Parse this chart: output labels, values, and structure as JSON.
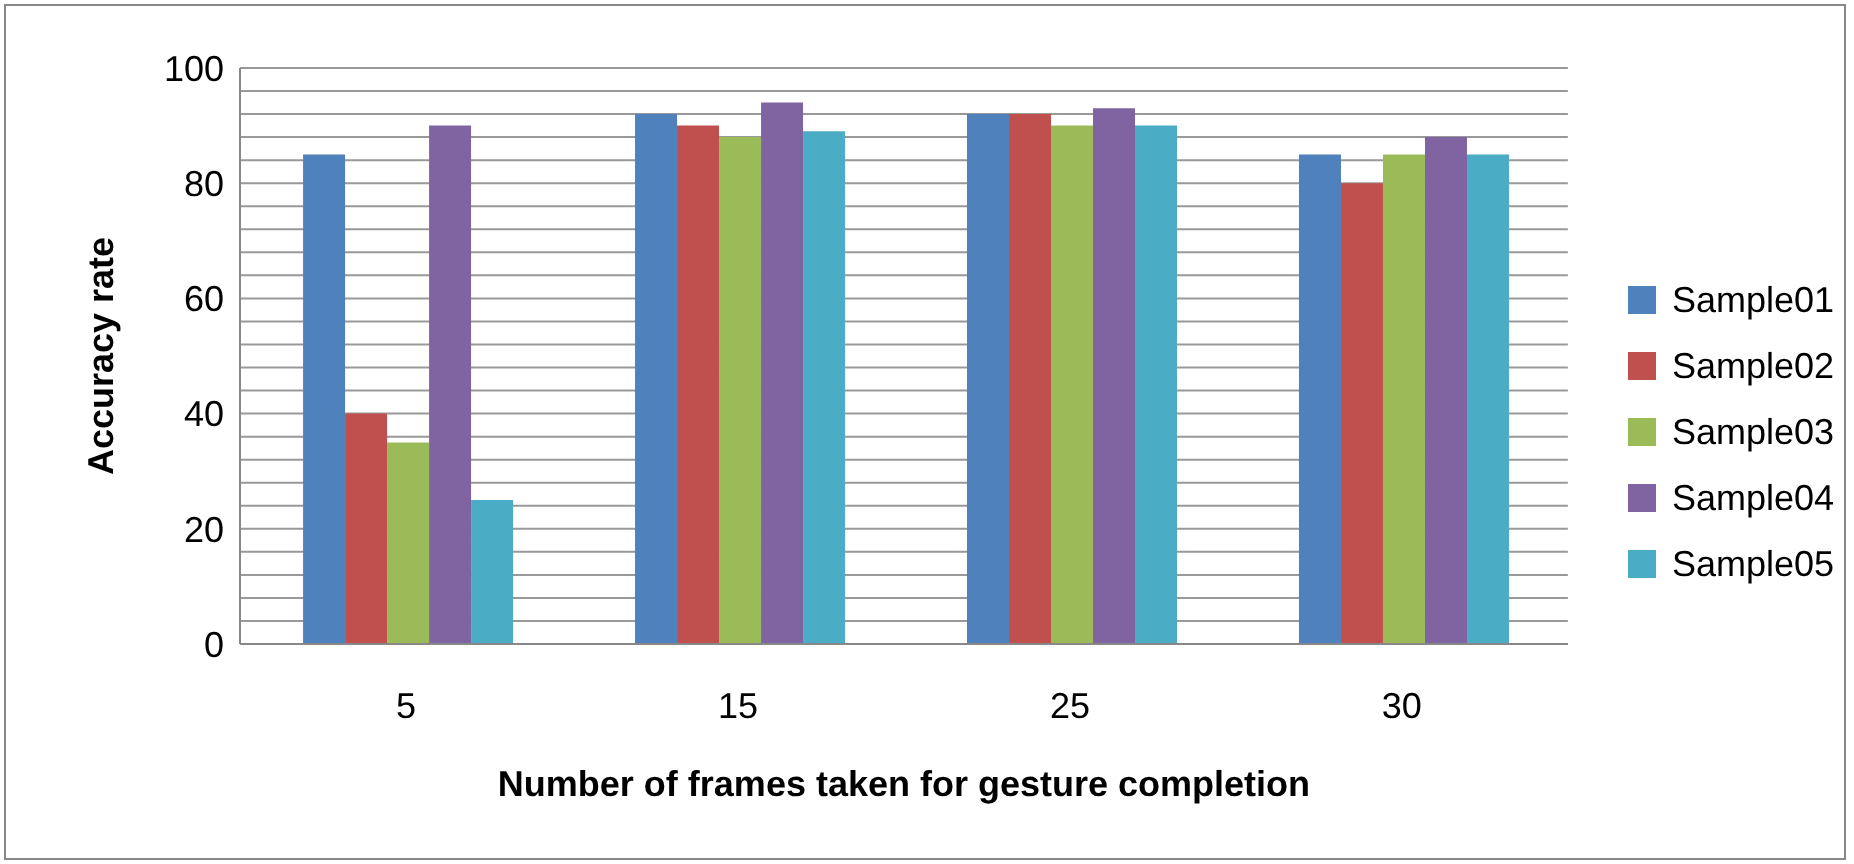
{
  "chart_data": {
    "type": "bar",
    "xlabel": "Number of frames taken for gesture completion",
    "ylabel": "Accuracy rate",
    "categories": [
      "5",
      "15",
      "25",
      "30"
    ],
    "series": [
      {
        "name": "Sample01",
        "color": "#4f81bd",
        "values": [
          85,
          92,
          92,
          85
        ]
      },
      {
        "name": "Sample02",
        "color": "#c0504d",
        "values": [
          40,
          90,
          92,
          80
        ]
      },
      {
        "name": "Sample03",
        "color": "#9bbb59",
        "values": [
          35,
          88,
          90,
          85
        ]
      },
      {
        "name": "Sample04",
        "color": "#8064a2",
        "values": [
          90,
          94,
          93,
          88
        ]
      },
      {
        "name": "Sample05",
        "color": "#4bacc6",
        "values": [
          25,
          89,
          90,
          85
        ]
      }
    ],
    "ylim": [
      0,
      100
    ],
    "yticks": [
      0,
      {
        "value": 4,
        "label": null
      },
      {
        "value": 8,
        "label": null
      },
      {
        "value": 12,
        "label": null
      },
      {
        "value": 16,
        "label": null
      },
      20,
      {
        "value": 24,
        "label": null
      },
      {
        "value": 28,
        "label": null
      },
      {
        "value": 32,
        "label": null
      },
      {
        "value": 36,
        "label": null
      },
      40,
      {
        "value": 44,
        "label": null
      },
      {
        "value": 48,
        "label": null
      },
      {
        "value": 52,
        "label": null
      },
      {
        "value": 56,
        "label": null
      },
      60,
      {
        "value": 64,
        "label": null
      },
      {
        "value": 68,
        "label": null
      },
      {
        "value": 72,
        "label": null
      },
      {
        "value": 76,
        "label": null
      },
      80,
      {
        "value": 84,
        "label": null
      },
      {
        "value": 88,
        "label": null
      },
      {
        "value": 92,
        "label": null
      },
      {
        "value": 96,
        "label": null
      },
      100
    ],
    "grid": "y",
    "legend": "right"
  }
}
